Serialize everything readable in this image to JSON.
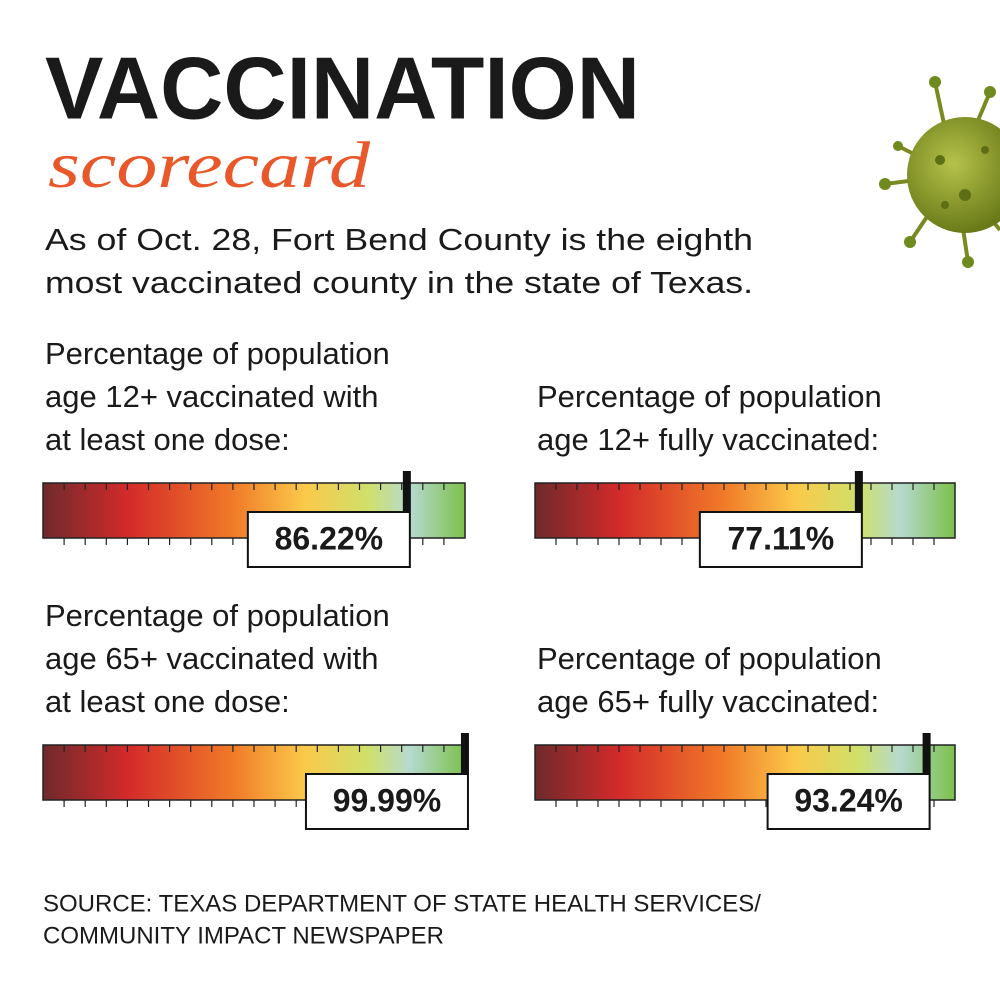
{
  "header": {
    "title": "VACCINATION",
    "subtitle": "scorecard",
    "description": [
      "As of Oct. 28, Fort Bend County is the eighth",
      "most vaccinated county in the state of Texas."
    ]
  },
  "chart_data": [
    {
      "type": "gauge",
      "title": [
        "Percentage of population",
        "age 12+ vaccinated with",
        "at least one dose:"
      ],
      "value": 86.22,
      "value_label": "86.22%",
      "xlim": [
        0,
        100
      ]
    },
    {
      "type": "gauge",
      "title": [
        "Percentage of population",
        "age 12+ fully vaccinated:"
      ],
      "value": 77.11,
      "value_label": "77.11%",
      "xlim": [
        0,
        100
      ]
    },
    {
      "type": "gauge",
      "title": [
        "Percentage of population",
        "age 65+ vaccinated with",
        "at least one dose:"
      ],
      "value": 99.99,
      "value_label": "99.99%",
      "xlim": [
        0,
        100
      ]
    },
    {
      "type": "gauge",
      "title": [
        "Percentage of population",
        "age 65+ fully vaccinated:"
      ],
      "value": 93.24,
      "value_label": "93.24%",
      "xlim": [
        0,
        100
      ]
    }
  ],
  "source": [
    "SOURCE: TEXAS DEPARTMENT OF STATE HEALTH SERVICES/",
    "COMMUNITY IMPACT NEWSPAPER"
  ]
}
